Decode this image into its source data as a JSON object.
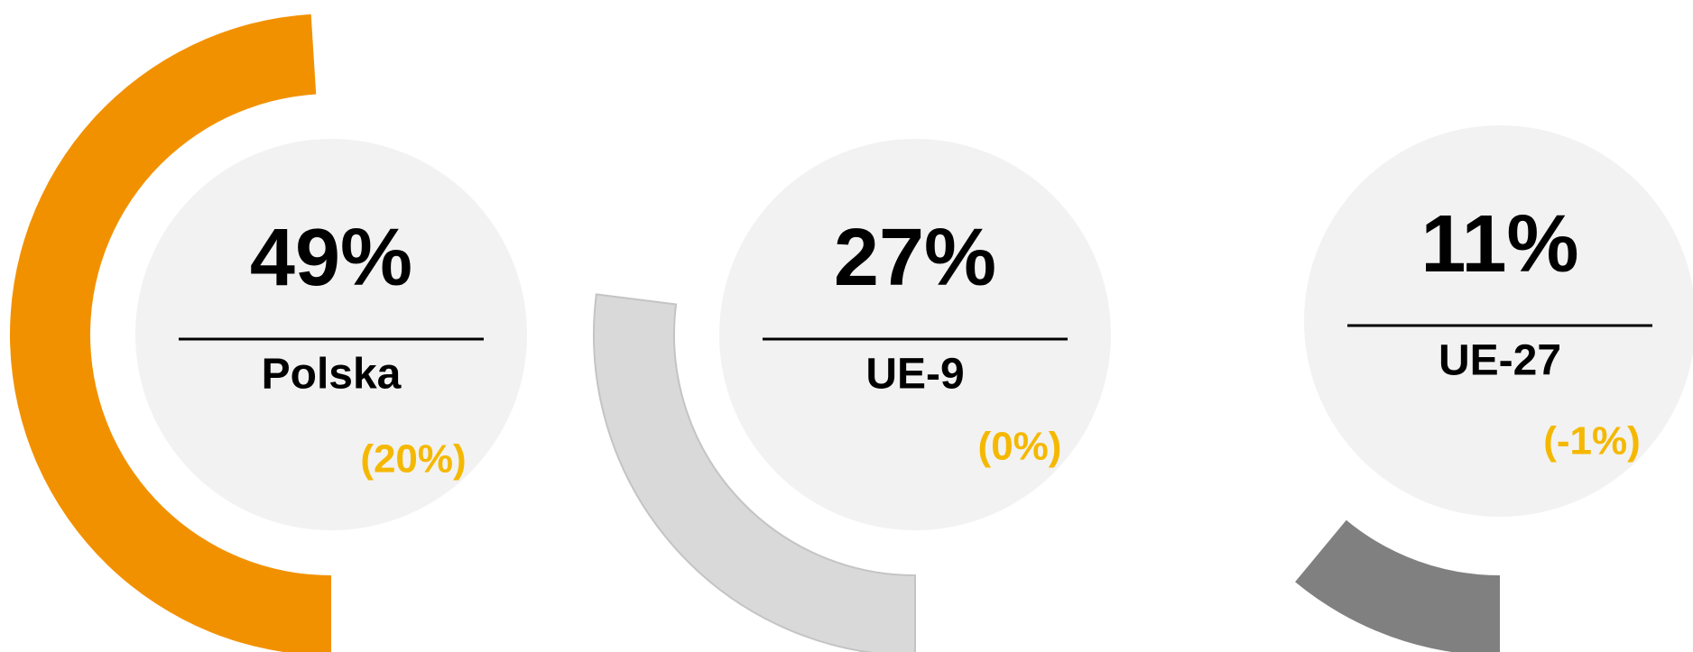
{
  "chart_data": {
    "type": "radial",
    "categories": [
      "Polska",
      "UE-9",
      "UE-27"
    ],
    "values": [
      49,
      27,
      11
    ],
    "value_labels": [
      "49%",
      "27%",
      "11%"
    ],
    "annotations": [
      "(20%)",
      "(0%)",
      "(-1%)"
    ],
    "colors": [
      "#f29100",
      "#d9d9d9",
      "#808080"
    ]
  }
}
